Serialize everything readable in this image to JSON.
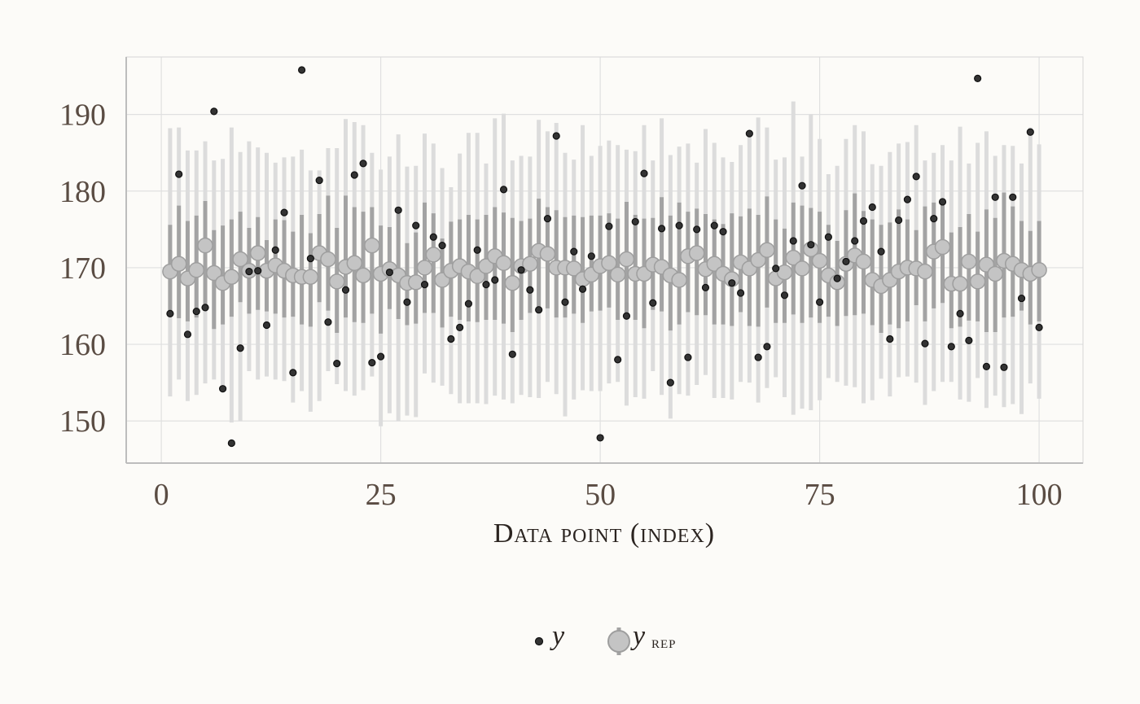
{
  "chart_data": {
    "type": "scatter",
    "xlabel": "Data point (index)",
    "ylabel": "",
    "xlim": [
      -4,
      105
    ],
    "ylim": [
      144.5,
      197.5
    ],
    "x_ticks": [
      0,
      25,
      50,
      75,
      100
    ],
    "x_tick_labels": [
      "0",
      "25",
      "50",
      "75",
      "100"
    ],
    "y_ticks": [
      150,
      160,
      170,
      180,
      190
    ],
    "y_tick_labels": [
      "150",
      "160",
      "170",
      "180",
      "190"
    ],
    "grid": true,
    "legend": {
      "position": "bottom",
      "items": [
        {
          "label": "y",
          "sub": ""
        },
        {
          "label": "y",
          "sub": "rep"
        }
      ]
    },
    "colors": {
      "y_point": "#333333",
      "yrep_point_fill": "#c4c4c4",
      "yrep_point_stroke": "#9e9e9e",
      "yrep_inner_interval": "#a3a3a3",
      "yrep_outer_interval": "#dcdcdc",
      "grid": "#e0e0e0",
      "axis": "#bdbdbd"
    },
    "series": [
      {
        "name": "y",
        "x": [
          1,
          2,
          3,
          4,
          5,
          6,
          7,
          8,
          9,
          10,
          11,
          12,
          13,
          14,
          15,
          16,
          17,
          18,
          19,
          20,
          21,
          22,
          23,
          24,
          25,
          26,
          27,
          28,
          29,
          30,
          31,
          32,
          33,
          34,
          35,
          36,
          37,
          38,
          39,
          40,
          41,
          42,
          43,
          44,
          45,
          46,
          47,
          48,
          49,
          50,
          51,
          52,
          53,
          54,
          55,
          56,
          57,
          58,
          59,
          60,
          61,
          62,
          63,
          64,
          65,
          66,
          67,
          68,
          69,
          70,
          71,
          72,
          73,
          74,
          75,
          76,
          77,
          78,
          79,
          80,
          81,
          82,
          83,
          84,
          85,
          86,
          87,
          88,
          89,
          90,
          91,
          92,
          93,
          94,
          95,
          96,
          97,
          98,
          99,
          100
        ],
        "values": [
          164.0,
          182.2,
          161.3,
          164.3,
          164.8,
          190.4,
          154.2,
          147.1,
          159.5,
          169.5,
          169.6,
          162.5,
          172.3,
          177.2,
          156.3,
          195.8,
          171.2,
          181.4,
          162.9,
          157.5,
          167.1,
          182.1,
          183.6,
          157.6,
          158.4,
          169.4,
          177.5,
          165.5,
          175.5,
          167.8,
          174.0,
          172.9,
          160.7,
          162.2,
          165.3,
          172.3,
          167.8,
          168.4,
          180.2,
          158.7,
          169.7,
          167.1,
          164.5,
          176.4,
          187.2,
          165.5,
          172.1,
          167.2,
          171.5,
          147.8,
          175.4,
          158.0,
          163.7,
          176.0,
          182.3,
          165.4,
          175.1,
          155.0,
          175.5,
          158.3,
          175.0,
          167.4,
          175.5,
          174.7,
          168.0,
          166.7,
          187.5,
          158.3,
          159.7,
          169.9,
          166.4,
          173.5,
          180.7,
          173.0,
          165.5,
          174.0,
          168.6,
          170.8,
          173.5,
          176.1,
          177.9,
          172.1,
          160.7,
          176.2,
          178.9,
          181.9,
          160.1,
          176.4,
          178.6,
          159.7,
          164.0,
          160.5,
          194.7,
          157.1,
          179.2,
          157.0,
          179.2,
          166.0,
          187.7,
          162.2
        ]
      },
      {
        "name": "y rep",
        "x": [
          1,
          2,
          3,
          4,
          5,
          6,
          7,
          8,
          9,
          10,
          11,
          12,
          13,
          14,
          15,
          16,
          17,
          18,
          19,
          20,
          21,
          22,
          23,
          24,
          25,
          26,
          27,
          28,
          29,
          30,
          31,
          32,
          33,
          34,
          35,
          36,
          37,
          38,
          39,
          40,
          41,
          42,
          43,
          44,
          45,
          46,
          47,
          48,
          49,
          50,
          51,
          52,
          53,
          54,
          55,
          56,
          57,
          58,
          59,
          60,
          61,
          62,
          63,
          64,
          65,
          66,
          67,
          68,
          69,
          70,
          71,
          72,
          73,
          74,
          75,
          76,
          77,
          78,
          79,
          80,
          81,
          82,
          83,
          84,
          85,
          86,
          87,
          88,
          89,
          90,
          91,
          92,
          93,
          94,
          95,
          96,
          97,
          98,
          99,
          100
        ],
        "values": [
          169.5,
          170.5,
          168.6,
          169.7,
          172.9,
          169.3,
          168.0,
          168.8,
          171.1,
          169.6,
          171.9,
          169.6,
          170.3,
          169.6,
          169.0,
          168.8,
          168.8,
          171.9,
          171.1,
          168.2,
          170.1,
          170.6,
          169.0,
          172.9,
          169.2,
          169.8,
          169.0,
          168.0,
          168.1,
          170.0,
          171.7,
          168.4,
          169.6,
          170.2,
          169.5,
          168.9,
          170.2,
          171.5,
          170.6,
          168.0,
          170.2,
          170.5,
          172.2,
          171.8,
          170.0,
          170.0,
          169.9,
          168.5,
          169.1,
          170.2,
          170.6,
          169.1,
          171.1,
          169.2,
          169.2,
          170.4,
          170.1,
          169.0,
          168.4,
          171.5,
          171.9,
          169.8,
          170.5,
          169.2,
          168.5,
          170.7,
          169.9,
          171.0,
          172.3,
          168.6,
          169.4,
          171.3,
          169.9,
          172.4,
          170.9,
          169.0,
          168.1,
          170.5,
          171.6,
          170.8,
          168.4,
          167.6,
          168.4,
          169.5,
          170.0,
          169.9,
          169.5,
          172.1,
          172.7,
          167.9,
          167.9,
          170.8,
          168.2,
          170.4,
          169.2,
          170.9,
          170.5,
          169.7,
          169.2,
          169.7
        ],
        "inner_low": [
          163.8,
          163.4,
          163.0,
          163.5,
          165.2,
          162.0,
          162.6,
          163.6,
          165.5,
          164.0,
          164.5,
          164.3,
          164.0,
          163.5,
          163.6,
          162.6,
          162.3,
          165.5,
          164.4,
          161.5,
          163.5,
          162.9,
          162.8,
          164.0,
          161.4,
          164.6,
          163.3,
          162.5,
          162.7,
          164.1,
          164.1,
          162.2,
          163.6,
          163.2,
          163.0,
          162.9,
          163.2,
          163.2,
          162.7,
          161.6,
          163.2,
          164.1,
          164.4,
          164.7,
          163.5,
          163.5,
          164.0,
          162.8,
          164.3,
          164.4,
          164.8,
          163.2,
          163.9,
          163.2,
          162.1,
          164.5,
          164.3,
          161.8,
          162.6,
          164.2,
          163.8,
          163.8,
          162.6,
          162.6,
          162.4,
          164.2,
          162.4,
          162.3,
          164.8,
          162.8,
          162.8,
          163.9,
          162.8,
          163.5,
          162.8,
          163.6,
          162.4,
          163.7,
          163.8,
          164.0,
          162.5,
          161.5,
          162.6,
          162.1,
          163.0,
          165.1,
          163.0,
          164.7,
          165.4,
          162.1,
          162.3,
          163.1,
          163.0,
          161.6,
          161.6,
          163.5,
          163.6,
          164.4,
          162.6,
          163.0
        ],
        "inner_high": [
          175.6,
          178.1,
          176.1,
          176.8,
          178.7,
          174.9,
          175.5,
          176.3,
          177.3,
          175.2,
          176.6,
          173.6,
          176.3,
          176.2,
          174.7,
          176.9,
          174.5,
          177.0,
          179.4,
          175.2,
          179.4,
          177.9,
          177.3,
          177.9,
          175.5,
          175.3,
          177.0,
          173.2,
          174.6,
          178.5,
          177.1,
          173.8,
          176.0,
          176.3,
          176.9,
          176.3,
          176.9,
          177.9,
          177.2,
          176.5,
          176.1,
          176.4,
          179.0,
          177.9,
          177.5,
          176.6,
          176.8,
          176.6,
          176.8,
          176.8,
          177.1,
          176.4,
          178.6,
          176.9,
          176.4,
          176.5,
          179.2,
          176.8,
          178.5,
          177.3,
          177.7,
          177.0,
          176.3,
          175.7,
          177.1,
          176.7,
          177.7,
          176.9,
          179.3,
          176.3,
          175.1,
          178.5,
          178.1,
          177.8,
          177.3,
          175.6,
          173.5,
          177.5,
          179.7,
          177.4,
          176.3,
          175.6,
          175.9,
          177.6,
          176.3,
          174.9,
          178.0,
          178.5,
          178.3,
          174.6,
          175.3,
          177.0,
          174.7,
          177.6,
          176.5,
          179.8,
          178.0,
          176.1,
          174.8,
          176.1
        ],
        "outer_low": [
          153.2,
          155.4,
          152.6,
          153.4,
          154.9,
          155.4,
          154.3,
          149.8,
          150.0,
          156.5,
          155.4,
          155.8,
          155.4,
          155.2,
          152.4,
          153.9,
          151.2,
          152.6,
          156.5,
          154.8,
          153.9,
          153.3,
          154.0,
          155.8,
          149.3,
          151.0,
          150.0,
          150.7,
          150.5,
          156.2,
          155.0,
          154.6,
          153.5,
          152.3,
          152.3,
          152.3,
          152.2,
          153.3,
          152.8,
          152.3,
          153.4,
          153.1,
          153.0,
          155.1,
          153.5,
          150.6,
          152.8,
          154.0,
          153.9,
          153.9,
          154.9,
          155.1,
          152.0,
          153.1,
          152.9,
          156.5,
          153.4,
          150.3,
          153.5,
          153.3,
          154.7,
          156.0,
          153.0,
          153.0,
          152.8,
          155.1,
          155.0,
          152.4,
          154.3,
          155.7,
          153.1,
          150.8,
          151.6,
          151.4,
          152.7,
          155.6,
          155.1,
          154.6,
          154.4,
          152.3,
          152.7,
          155.5,
          153.2,
          155.7,
          155.8,
          155.0,
          152.1,
          153.9,
          155.1,
          155.1,
          152.8,
          152.5,
          155.6,
          151.7,
          153.3,
          151.8,
          152.2,
          150.9,
          154.9,
          152.9
        ],
        "outer_high": [
          188.2,
          188.3,
          185.3,
          185.3,
          186.5,
          184.0,
          184.2,
          188.3,
          185.1,
          186.5,
          185.7,
          185.0,
          183.7,
          184.4,
          184.5,
          185.4,
          182.7,
          182.7,
          185.6,
          185.6,
          189.4,
          189.0,
          188.6,
          185.0,
          182.8,
          184.5,
          187.4,
          183.2,
          183.3,
          187.5,
          186.2,
          183.0,
          180.5,
          184.9,
          187.6,
          187.6,
          183.6,
          189.5,
          190.1,
          184.0,
          184.6,
          184.5,
          189.3,
          187.8,
          188.9,
          185.0,
          184.1,
          188.6,
          184.6,
          185.9,
          186.6,
          186.0,
          185.4,
          185.2,
          188.6,
          184.0,
          189.5,
          184.7,
          185.8,
          186.2,
          183.7,
          188.1,
          186.3,
          184.4,
          183.8,
          186.0,
          187.8,
          189.6,
          188.3,
          184.1,
          184.4,
          191.7,
          184.5,
          190.0,
          186.8,
          182.2,
          183.3,
          186.8,
          188.6,
          187.8,
          183.5,
          183.3,
          185.1,
          186.2,
          186.4,
          188.6,
          184.0,
          185.0,
          186.0,
          184.0,
          188.4,
          183.6,
          186.3,
          187.8,
          184.6,
          186.0,
          185.9,
          183.6,
          188.3,
          186.1
        ]
      }
    ]
  }
}
